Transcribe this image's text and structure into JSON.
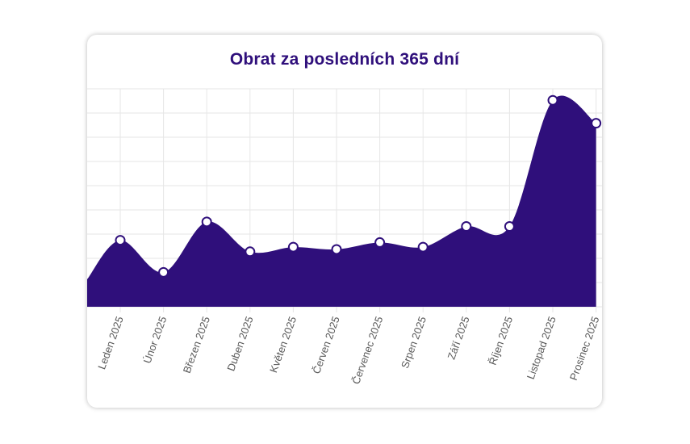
{
  "chart_data": {
    "type": "area",
    "title": "Obrat za posledních 365 dní",
    "xlabel": "",
    "ylabel": "",
    "categories": [
      "Leden 2025",
      "Únor 2025",
      "Březen 2025",
      "Duben 2025",
      "Květen 2025",
      "Červen 2025",
      "Červenec 2025",
      "Srpen 2025",
      "Září 2025",
      "Říjen 2025",
      "Listopad 2025",
      "Prosinec 2025"
    ],
    "series": [
      {
        "values": [
          29,
          15,
          37,
          24,
          26,
          25,
          28,
          26,
          35,
          35,
          90,
          80
        ]
      }
    ],
    "start_value": 12,
    "ylim": [
      0,
      95
    ],
    "grid": true,
    "fill_color": "#2f0f7b",
    "point_fill": "#ffffff",
    "point_stroke": "#2f0f7b",
    "title_color": "#2f0f7b"
  }
}
